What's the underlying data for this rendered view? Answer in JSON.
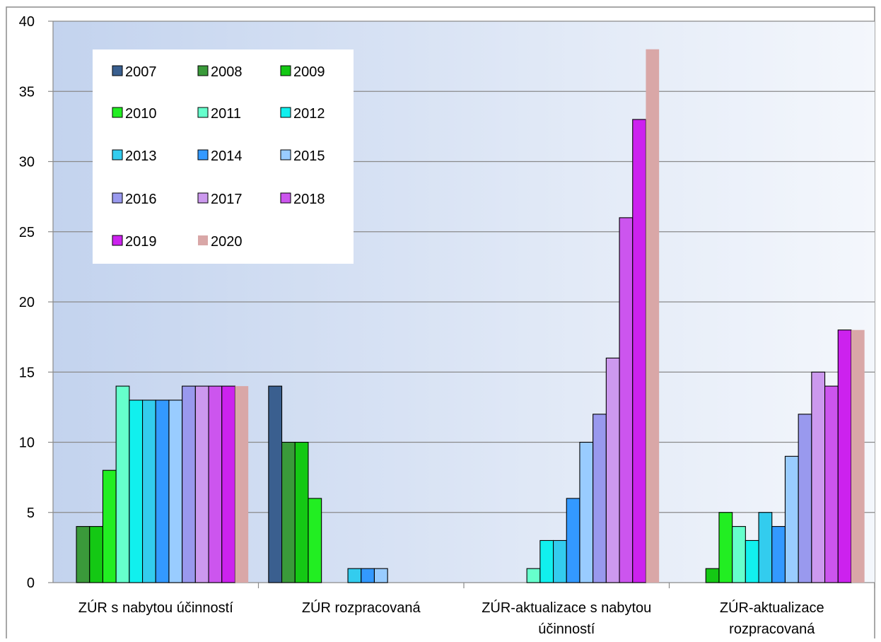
{
  "chart_data": {
    "type": "bar",
    "title": "",
    "xlabel": "",
    "ylabel": "",
    "ylim": [
      0,
      40
    ],
    "yticks": [
      0,
      5,
      10,
      15,
      20,
      25,
      30,
      35,
      40
    ],
    "grid": true,
    "legend_position": "top-left",
    "categories": [
      [
        "ZÚR s nabytou účinností"
      ],
      [
        "ZÚR rozpracovaná"
      ],
      [
        "ZÚR-aktualizace s nabytou",
        "účinností"
      ],
      [
        "ZÚR-aktualizace",
        "rozpracovaná"
      ]
    ],
    "series": [
      {
        "name": "2007",
        "color": "#3a5f8f",
        "values": [
          null,
          14,
          null,
          null
        ]
      },
      {
        "name": "2008",
        "color": "#3a9a3a",
        "values": [
          4,
          10,
          null,
          null
        ]
      },
      {
        "name": "2009",
        "color": "#14c814",
        "values": [
          4,
          10,
          null,
          1
        ]
      },
      {
        "name": "2010",
        "color": "#22ee22",
        "values": [
          8,
          6,
          null,
          5
        ]
      },
      {
        "name": "2011",
        "color": "#66ffcc",
        "values": [
          14,
          null,
          1,
          4
        ]
      },
      {
        "name": "2012",
        "color": "#11f0ee",
        "values": [
          13,
          null,
          3,
          3
        ]
      },
      {
        "name": "2013",
        "color": "#33ccee",
        "values": [
          13,
          1,
          3,
          5
        ]
      },
      {
        "name": "2014",
        "color": "#3399ff",
        "values": [
          13,
          1,
          6,
          4
        ]
      },
      {
        "name": "2015",
        "color": "#99ccff",
        "values": [
          13,
          1,
          10,
          9
        ]
      },
      {
        "name": "2016",
        "color": "#9999ee",
        "values": [
          14,
          null,
          12,
          12
        ]
      },
      {
        "name": "2017",
        "color": "#cc99ee",
        "values": [
          14,
          null,
          16,
          15
        ]
      },
      {
        "name": "2018",
        "color": "#cc55ee",
        "values": [
          14,
          null,
          26,
          14
        ]
      },
      {
        "name": "2019",
        "color": "#cc22ee",
        "values": [
          14,
          null,
          33,
          18
        ]
      },
      {
        "name": "2020",
        "color": "#d9a7a7",
        "values": [
          14,
          null,
          38,
          18
        ]
      }
    ]
  }
}
